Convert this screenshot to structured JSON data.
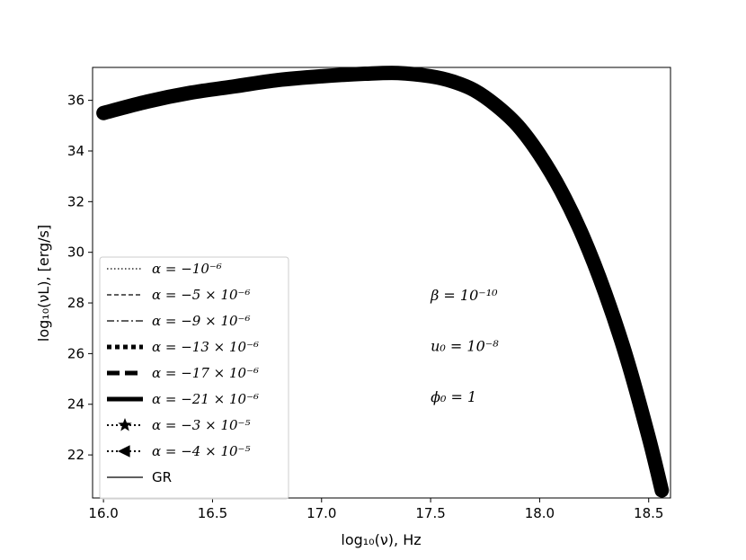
{
  "chart_data": {
    "type": "line",
    "xlabel": "log₁₀(ν),  Hz",
    "ylabel": "log₁₀(νL),  [erg/s]",
    "xlim": [
      15.95,
      18.6
    ],
    "ylim": [
      20.3,
      37.3
    ],
    "xticks": [
      "16.0",
      "16.5",
      "17.0",
      "17.5",
      "18.0",
      "18.5"
    ],
    "yticks": [
      "22",
      "24",
      "26",
      "28",
      "30",
      "32",
      "34",
      "36"
    ],
    "grid": false,
    "legend_position": "lower-left",
    "x": [
      16.0,
      16.2,
      16.4,
      16.6,
      16.8,
      17.0,
      17.2,
      17.35,
      17.5,
      17.6,
      17.7,
      17.8,
      17.9,
      18.0,
      18.1,
      18.2,
      18.3,
      18.4,
      18.5,
      18.56
    ],
    "series": [
      {
        "name": "α = −10⁻⁶",
        "style": "dotted",
        "y": [
          35.5,
          35.95,
          36.3,
          36.55,
          36.8,
          36.95,
          37.05,
          37.08,
          36.95,
          36.75,
          36.4,
          35.8,
          35.0,
          33.85,
          32.4,
          30.6,
          28.4,
          25.8,
          22.7,
          20.6
        ]
      },
      {
        "name": "α = −5 × 10⁻⁶",
        "style": "dashed",
        "y": [
          35.5,
          35.95,
          36.3,
          36.55,
          36.8,
          36.95,
          37.05,
          37.08,
          36.95,
          36.75,
          36.4,
          35.8,
          35.0,
          33.85,
          32.4,
          30.6,
          28.4,
          25.8,
          22.7,
          20.6
        ]
      },
      {
        "name": "α = −9 × 10⁻⁶",
        "style": "dashdot",
        "y": [
          35.5,
          35.95,
          36.3,
          36.55,
          36.8,
          36.95,
          37.05,
          37.08,
          36.95,
          36.75,
          36.4,
          35.8,
          35.0,
          33.85,
          32.4,
          30.6,
          28.4,
          25.8,
          22.7,
          20.6
        ]
      },
      {
        "name": "α = −13 × 10⁻⁶",
        "style": "thick-dotted",
        "y": [
          35.5,
          35.95,
          36.3,
          36.55,
          36.8,
          36.95,
          37.05,
          37.08,
          36.95,
          36.75,
          36.4,
          35.8,
          35.0,
          33.85,
          32.4,
          30.6,
          28.4,
          25.8,
          22.7,
          20.6
        ]
      },
      {
        "name": "α = −17 × 10⁻⁶",
        "style": "thick-dashed",
        "y": [
          35.5,
          35.95,
          36.3,
          36.55,
          36.8,
          36.95,
          37.05,
          37.08,
          36.95,
          36.75,
          36.4,
          35.8,
          35.0,
          33.85,
          32.4,
          30.6,
          28.4,
          25.8,
          22.7,
          20.6
        ]
      },
      {
        "name": "α = −21 × 10⁻⁶",
        "style": "thick-solid",
        "y": [
          35.5,
          35.95,
          36.3,
          36.55,
          36.8,
          36.95,
          37.05,
          37.08,
          36.95,
          36.75,
          36.4,
          35.8,
          35.0,
          33.85,
          32.4,
          30.6,
          28.4,
          25.8,
          22.7,
          20.6
        ]
      },
      {
        "name": "α = −3 × 10⁻⁵",
        "style": "dotted-star",
        "y": [
          35.5,
          35.95,
          36.3,
          36.55,
          36.8,
          36.95,
          37.05,
          37.08,
          36.95,
          36.75,
          36.4,
          35.8,
          35.0,
          33.85,
          32.4,
          30.6,
          28.4,
          25.8,
          22.7,
          20.6
        ]
      },
      {
        "name": "α = −4 × 10⁻⁵",
        "style": "dotted-triangle-left",
        "y": [
          35.5,
          35.95,
          36.3,
          36.55,
          36.8,
          36.95,
          37.05,
          37.08,
          36.95,
          36.75,
          36.4,
          35.8,
          35.0,
          33.85,
          32.4,
          30.6,
          28.4,
          25.8,
          22.7,
          20.6
        ]
      },
      {
        "name": "GR",
        "style": "solid",
        "y": [
          35.5,
          35.95,
          36.3,
          36.55,
          36.8,
          36.95,
          37.05,
          37.08,
          36.95,
          36.75,
          36.4,
          35.8,
          35.0,
          33.85,
          32.4,
          30.6,
          28.4,
          25.8,
          22.7,
          20.6
        ]
      }
    ],
    "annotations": [
      {
        "text": "β = 10⁻¹⁰",
        "x": 17.5,
        "y": 28.1
      },
      {
        "text": "u₀ = 10⁻⁸",
        "x": 17.5,
        "y": 26.1
      },
      {
        "text": "ϕ₀ = 1",
        "x": 17.5,
        "y": 24.1
      }
    ],
    "colors": {
      "line": "#000000",
      "background": "#ffffff",
      "legend_border": "#cccccc"
    }
  }
}
